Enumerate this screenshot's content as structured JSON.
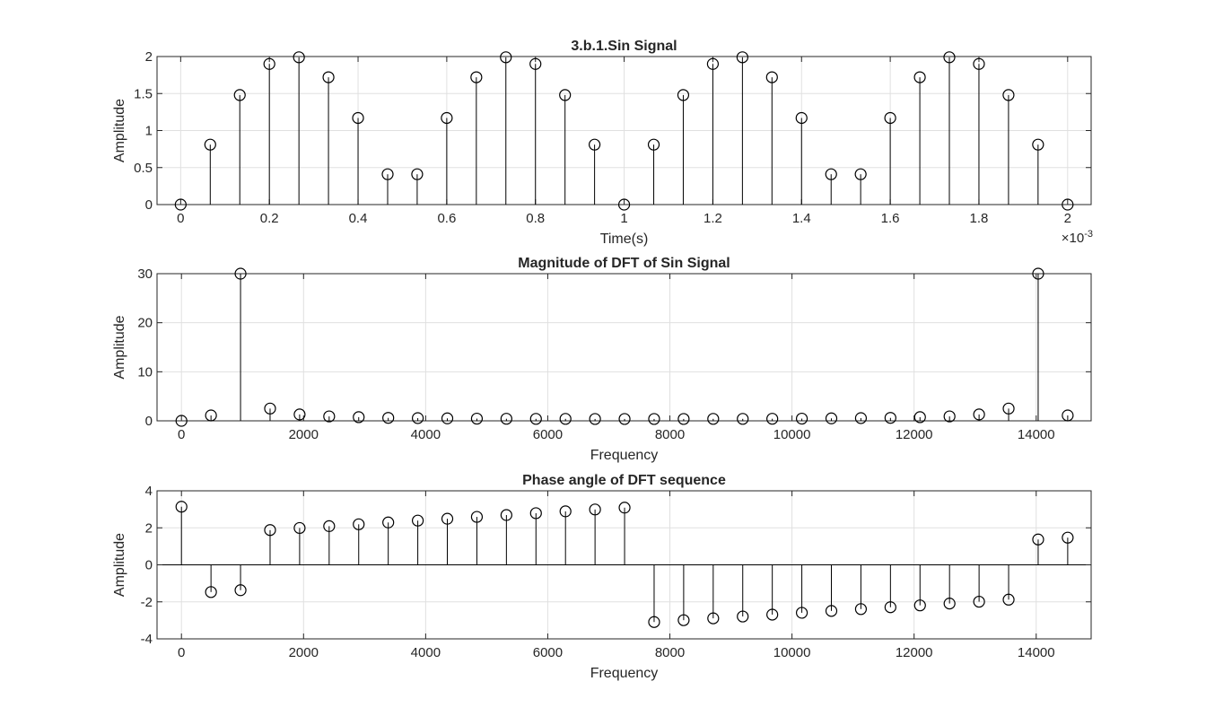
{
  "chart_data": [
    {
      "type": "stem",
      "title": "3.b.1.Sin Signal",
      "xlabel": "Time(s)",
      "ylabel": "Amplitude",
      "x_exponent_label": "×10",
      "x_exponent_power": "-3",
      "xlim": [
        -5.33e-05,
        0.002053
      ],
      "ylim": [
        0,
        2
      ],
      "xticks": [
        0,
        0.0002,
        0.0004,
        0.0006,
        0.0008,
        0.001,
        0.0012,
        0.0014,
        0.0016,
        0.0018,
        0.002
      ],
      "xticklabels": [
        "0",
        "0.2",
        "0.4",
        "0.6",
        "0.8",
        "1",
        "1.2",
        "1.4",
        "1.6",
        "1.8",
        "2"
      ],
      "yticks": [
        0,
        0.5,
        1,
        1.5,
        2
      ],
      "yticklabels": [
        "0",
        "0.5",
        "1",
        "1.5",
        "2"
      ],
      "grid": true,
      "x": [
        0,
        6.67e-05,
        0.0001333,
        0.0002,
        0.0002667,
        0.0003333,
        0.0004,
        0.0004667,
        0.0005333,
        0.0006,
        0.0006667,
        0.0007333,
        0.0008,
        0.0008667,
        0.0009333,
        0.001,
        0.0010667,
        0.0011333,
        0.0012,
        0.0012667,
        0.0013333,
        0.0014,
        0.0014667,
        0.0015333,
        0.0016,
        0.0016667,
        0.0017333,
        0.0018,
        0.0018667,
        0.0019333,
        0.002
      ],
      "y": [
        0,
        0.81,
        1.48,
        1.9,
        1.99,
        1.72,
        1.17,
        0.41,
        0.41,
        1.17,
        1.72,
        1.99,
        1.9,
        1.48,
        0.81,
        0,
        0.81,
        1.48,
        1.9,
        1.99,
        1.72,
        1.17,
        0.41,
        0.41,
        1.17,
        1.72,
        1.99,
        1.9,
        1.48,
        0.81,
        0
      ]
    },
    {
      "type": "stem",
      "title": "Magnitude of DFT of Sin Signal",
      "xlabel": "Frequency",
      "ylabel": "Amplitude",
      "xlim": [
        -400,
        14900
      ],
      "ylim": [
        0,
        30
      ],
      "xticks": [
        0,
        2000,
        4000,
        6000,
        8000,
        10000,
        12000,
        14000
      ],
      "xticklabels": [
        "0",
        "2000",
        "4000",
        "6000",
        "8000",
        "10000",
        "12000",
        "14000"
      ],
      "yticks": [
        0,
        10,
        20,
        30
      ],
      "yticklabels": [
        "0",
        "10",
        "20",
        "30"
      ],
      "grid": true,
      "x": [
        0,
        483.9,
        967.7,
        1451.6,
        1935.5,
        2419.4,
        2903.2,
        3387.1,
        3871,
        4354.8,
        4838.7,
        5322.6,
        5806.5,
        6290.3,
        6774.2,
        7258.1,
        7741.9,
        8225.8,
        8709.7,
        9193.5,
        9677.4,
        10161.3,
        10645.2,
        11129,
        11612.9,
        12096.8,
        12580.6,
        13064.5,
        13548.4,
        14032.3,
        14516.1
      ],
      "y": [
        0,
        1.1,
        30,
        2.5,
        1.3,
        0.9,
        0.75,
        0.6,
        0.55,
        0.5,
        0.45,
        0.42,
        0.4,
        0.4,
        0.38,
        0.38,
        0.38,
        0.38,
        0.4,
        0.4,
        0.42,
        0.45,
        0.5,
        0.55,
        0.6,
        0.75,
        0.9,
        1.3,
        2.5,
        30,
        1.1
      ]
    },
    {
      "type": "stem",
      "title": "Phase angle of DFT sequence",
      "xlabel": "Frequency",
      "ylabel": "Amplitude",
      "xlim": [
        -400,
        14900
      ],
      "ylim": [
        -4,
        4
      ],
      "xticks": [
        0,
        2000,
        4000,
        6000,
        8000,
        10000,
        12000,
        14000
      ],
      "xticklabels": [
        "0",
        "2000",
        "4000",
        "6000",
        "8000",
        "10000",
        "12000",
        "14000"
      ],
      "yticks": [
        -4,
        -2,
        0,
        2,
        4
      ],
      "yticklabels": [
        "-4",
        "-2",
        "0",
        "2",
        "4"
      ],
      "grid": true,
      "x": [
        0,
        483.9,
        967.7,
        1451.6,
        1935.5,
        2419.4,
        2903.2,
        3387.1,
        3871,
        4354.8,
        4838.7,
        5322.6,
        5806.5,
        6290.3,
        6774.2,
        7258.1,
        7741.9,
        8225.8,
        8709.7,
        9193.5,
        9677.4,
        10161.3,
        10645.2,
        11129,
        11612.9,
        12096.8,
        12580.6,
        13064.5,
        13548.4,
        14032.3,
        14516.1
      ],
      "y": [
        3.14,
        -1.47,
        -1.37,
        1.88,
        1.99,
        2.09,
        2.19,
        2.29,
        2.39,
        2.49,
        2.59,
        2.69,
        2.79,
        2.89,
        2.99,
        3.09,
        -3.09,
        -2.99,
        -2.89,
        -2.79,
        -2.69,
        -2.59,
        -2.49,
        -2.39,
        -2.29,
        -2.19,
        -2.09,
        -1.99,
        -1.88,
        1.37,
        1.47
      ]
    }
  ]
}
